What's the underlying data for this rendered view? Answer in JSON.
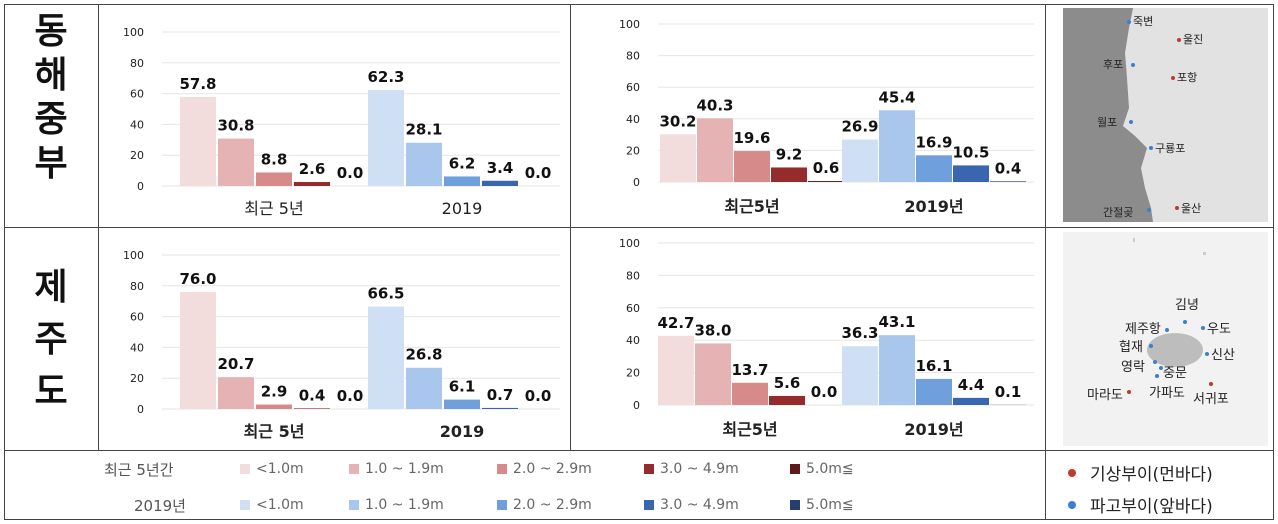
{
  "regions": {
    "east": "동\n해\n중\n부",
    "jeju": "제\n주\n도"
  },
  "colors": {
    "recent": [
      "#f3dcdc",
      "#e5b3b3",
      "#d68a8a",
      "#962b2b",
      "#5e1a1a"
    ],
    "y2019": [
      "#cfe0f5",
      "#a9c6ec",
      "#6f9fdc",
      "#3a66b0",
      "#25406e"
    ],
    "buoy_weather": "#c0392b",
    "buoy_wave": "#3b7fd1"
  },
  "chart_data": [
    {
      "type": "bar",
      "panel": "east-left",
      "categories": [
        "최근 5년",
        "2019"
      ],
      "series_labels": [
        "<1.0m",
        "1.0 ~ 1.9m",
        "2.0 ~ 2.9m",
        "3.0 ~ 4.9m",
        "5.0m≦"
      ],
      "groups": [
        [
          57.8,
          30.8,
          8.8,
          2.6,
          0.0
        ],
        [
          62.3,
          28.1,
          6.2,
          3.4,
          0.0
        ]
      ],
      "ylim": [
        0,
        100
      ],
      "yticks": [
        "0",
        "20",
        "40",
        "60",
        "80",
        "100"
      ]
    },
    {
      "type": "bar",
      "panel": "east-right",
      "categories": [
        "최근5년",
        "2019년"
      ],
      "series_labels": [
        "<1.0m",
        "1.0 ~ 1.9m",
        "2.0 ~ 2.9m",
        "3.0 ~ 4.9m",
        "5.0m≦"
      ],
      "groups": [
        [
          30.2,
          40.3,
          19.6,
          9.2,
          0.6
        ],
        [
          26.9,
          45.4,
          16.9,
          10.5,
          0.4
        ]
      ],
      "ylim": [
        0,
        100
      ],
      "yticks": [
        "0",
        "20",
        "40",
        "60",
        "80",
        "100"
      ]
    },
    {
      "type": "bar",
      "panel": "jeju-left",
      "categories": [
        "최근 5년",
        "2019"
      ],
      "series_labels": [
        "<1.0m",
        "1.0 ~ 1.9m",
        "2.0 ~ 2.9m",
        "3.0 ~ 4.9m",
        "5.0m≦"
      ],
      "groups": [
        [
          76.0,
          20.7,
          2.9,
          0.4,
          0.0
        ],
        [
          66.5,
          26.8,
          6.1,
          0.7,
          0.0
        ]
      ],
      "ylim": [
        0,
        100
      ],
      "yticks": [
        "0",
        "20",
        "40",
        "60",
        "80",
        "100"
      ]
    },
    {
      "type": "bar",
      "panel": "jeju-right",
      "categories": [
        "최근5년",
        "2019년"
      ],
      "series_labels": [
        "<1.0m",
        "1.0 ~ 1.9m",
        "2.0 ~ 2.9m",
        "3.0 ~ 4.9m",
        "5.0m≦"
      ],
      "groups": [
        [
          42.7,
          38.0,
          13.7,
          5.6,
          0.0
        ],
        [
          36.3,
          43.1,
          16.1,
          4.4,
          0.1
        ]
      ],
      "ylim": [
        0,
        100
      ],
      "yticks": [
        "0",
        "20",
        "40",
        "60",
        "80",
        "100"
      ]
    }
  ],
  "legend": {
    "recent_title": "최근 5년간",
    "y2019_title": "2019년",
    "items": [
      "<1.0m",
      "1.0 ~ 1.9m",
      "2.0 ~ 2.9m",
      "3.0 ~ 4.9m",
      "5.0m≦"
    ],
    "buoy_weather": "기상부이(먼바다)",
    "buoy_wave": "파고부이(앞바다)"
  },
  "map_east": {
    "labels": [
      "죽변",
      "울진",
      "후포",
      "포항",
      "월포",
      "구룡포",
      "간절곶",
      "울산"
    ]
  },
  "map_jeju": {
    "labels": [
      "김녕",
      "제주항",
      "우도",
      "협재",
      "신산",
      "영락",
      "중문",
      "마라도",
      "가파도",
      "서귀포"
    ]
  }
}
